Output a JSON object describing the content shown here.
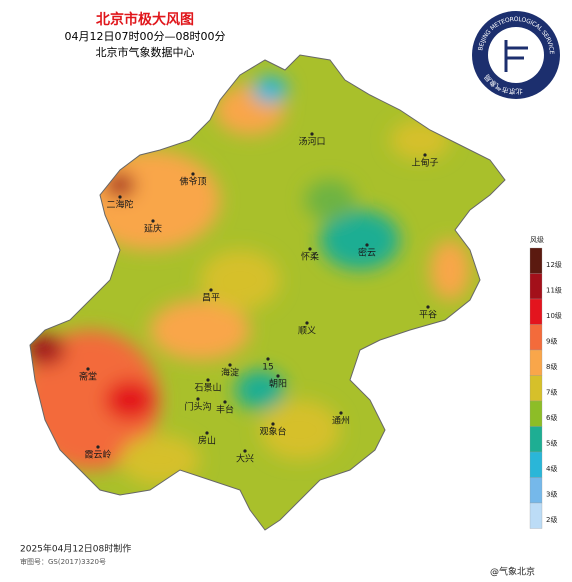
{
  "header": {
    "title": "北京市极大风图",
    "time": "04月12日07时00分—08时00分",
    "org": "北京市气象数据中心"
  },
  "logo": {
    "en": "BEIJING METEOROLOGICAL SERVICE",
    "cn": "北京市气象局"
  },
  "places": [
    "汤河口",
    "上甸子",
    "佛爷顶",
    "二海陀",
    "延庆",
    "怀柔",
    "密云",
    "昌平",
    "平谷",
    "顺义",
    "海淀",
    "朝阳",
    "石景山",
    "门头沟",
    "丰台",
    "斋堂",
    "房山",
    "观象台",
    "大兴",
    "霞云岭",
    "通州",
    "15"
  ],
  "legend": {
    "title": "风级",
    "levels": [
      {
        "label": "12级",
        "color": "#5b1a10"
      },
      {
        "label": "11级",
        "color": "#a3101a"
      },
      {
        "label": "10级",
        "color": "#e3141e"
      },
      {
        "label": "9级",
        "color": "#f36b3b"
      },
      {
        "label": "8级",
        "color": "#f9a64a"
      },
      {
        "label": "7级",
        "color": "#d6c02a"
      },
      {
        "label": "6级",
        "color": "#8dbd27"
      },
      {
        "label": "5级",
        "color": "#1eae93"
      },
      {
        "label": "4级",
        "color": "#2ab6d8"
      },
      {
        "label": "3级",
        "color": "#75b8ea"
      },
      {
        "label": "2级",
        "color": "#bcdcf6"
      }
    ]
  },
  "footer": {
    "made": "2025年04月12日08时制作",
    "review": "审图号：GS(2017)3320号",
    "watermark": "@气象北京"
  }
}
